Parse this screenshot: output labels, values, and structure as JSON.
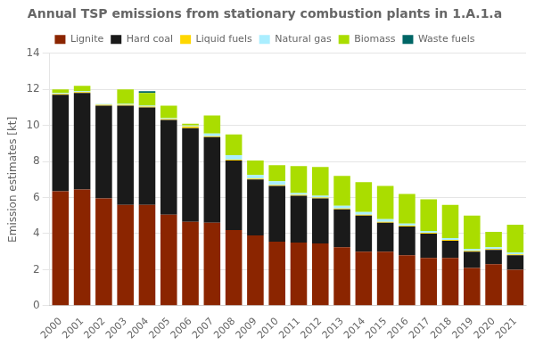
{
  "chart_data": {
    "type": "bar",
    "stacked": true,
    "title": "Annual TSP emissions from stationary combustion plants in 1.A.1.a",
    "ylabel": "Emission estimates [kt]",
    "categories": [
      2000,
      2001,
      2002,
      2003,
      2004,
      2005,
      2006,
      2007,
      2008,
      2009,
      2010,
      2011,
      2012,
      2013,
      2014,
      2015,
      2016,
      2017,
      2018,
      2019,
      2020,
      2021
    ],
    "series": [
      {
        "name": "Lignite",
        "color": "#8B2500",
        "values": [
          6.35,
          6.45,
          5.95,
          5.6,
          5.6,
          5.05,
          4.65,
          4.6,
          4.2,
          3.9,
          3.55,
          3.5,
          3.45,
          3.25,
          3.0,
          3.0,
          2.8,
          2.65,
          2.65,
          2.1,
          2.3,
          2.0
        ]
      },
      {
        "name": "Hard coal",
        "color": "#1a1a1a",
        "values": [
          5.35,
          5.35,
          5.15,
          5.5,
          5.4,
          5.25,
          5.2,
          4.75,
          3.85,
          3.1,
          3.1,
          2.6,
          2.5,
          2.1,
          2.0,
          1.6,
          1.6,
          1.35,
          0.95,
          0.9,
          0.8,
          0.8
        ]
      },
      {
        "name": "Liquid fuels",
        "color": "#FFD700",
        "values": [
          0.05,
          0.05,
          0.05,
          0.05,
          0.05,
          0.05,
          0.1,
          0.05,
          0.05,
          0.05,
          0.05,
          0.05,
          0.05,
          0.05,
          0.05,
          0.05,
          0.05,
          0.05,
          0.05,
          0.05,
          0.05,
          0.05
        ]
      },
      {
        "name": "Natural gas",
        "color": "#AAEEFF",
        "values": [
          0.05,
          0.05,
          0.05,
          0.05,
          0.05,
          0.05,
          0.05,
          0.15,
          0.25,
          0.2,
          0.2,
          0.1,
          0.1,
          0.15,
          0.15,
          0.15,
          0.1,
          0.1,
          0.1,
          0.1,
          0.1,
          0.1
        ]
      },
      {
        "name": "Biomass",
        "color": "#AADD00",
        "values": [
          0.2,
          0.3,
          0.0,
          0.8,
          0.7,
          0.7,
          0.1,
          1.0,
          1.15,
          0.8,
          0.9,
          1.5,
          1.6,
          1.65,
          1.65,
          1.85,
          1.65,
          1.75,
          1.85,
          1.85,
          0.85,
          1.55
        ]
      },
      {
        "name": "Waste fuels",
        "color": "#006666",
        "values": [
          0.0,
          0.0,
          0.0,
          0.0,
          0.1,
          0.0,
          0.0,
          0.0,
          0.0,
          0.0,
          0.0,
          0.0,
          0.0,
          0.0,
          0.0,
          0.0,
          0.0,
          0.0,
          0.0,
          0.0,
          0.0,
          0.0
        ]
      }
    ],
    "ylim": [
      0,
      14
    ],
    "yticks": [
      0,
      2,
      4,
      6,
      8,
      10,
      12,
      14
    ],
    "grid": true,
    "legend": "top"
  }
}
